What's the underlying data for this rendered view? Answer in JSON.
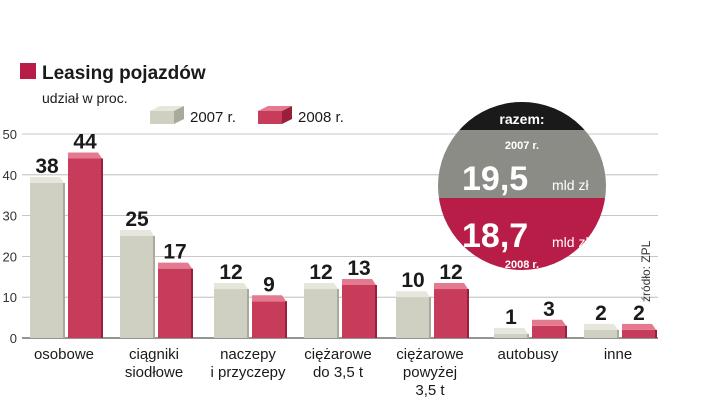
{
  "header": {
    "title": "Leasing pojazdów",
    "subtitle": "udział w proc.",
    "title_color": "#b81d47"
  },
  "legend": [
    {
      "name": "2007 r.",
      "color": "#cfcfc2"
    },
    {
      "name": "2008 r.",
      "color": "#c73c5a"
    }
  ],
  "summary": {
    "heading": "razem:",
    "items": [
      {
        "year": "2007 r.",
        "value": "19,5",
        "unit": "mld zł",
        "color": "#8c8c86"
      },
      {
        "year": "2008 r.",
        "value": "18,7",
        "unit": "mld zł",
        "color": "#b81d47"
      }
    ]
  },
  "source": "źródło: ZPL",
  "chart_data": {
    "type": "bar",
    "categories": [
      "osobowe",
      "ciągniki siodłowe",
      "naczepy i przyczepy",
      "ciężarowe do 3,5 t",
      "ciężarowe powyżej 3,5 t",
      "autobusy",
      "inne"
    ],
    "category_lines": [
      [
        "osobowe"
      ],
      [
        "ciągniki",
        "siodłowe"
      ],
      [
        "naczepy",
        "i przyczepy"
      ],
      [
        "ciężarowe",
        "do 3,5 t"
      ],
      [
        "ciężarowe",
        "powyżej",
        "3,5 t"
      ],
      [
        "autobusy"
      ],
      [
        "inne"
      ]
    ],
    "series": [
      {
        "name": "2007 r.",
        "values": [
          38,
          25,
          12,
          12,
          10,
          1,
          2
        ],
        "color": "#cfcfc2",
        "top": "#e6e6dc",
        "side": "#a9a99c"
      },
      {
        "name": "2008 r.",
        "values": [
          44,
          17,
          9,
          13,
          12,
          3,
          2
        ],
        "color": "#c73c5a",
        "top": "#e37a90",
        "side": "#9a1f3a"
      }
    ],
    "ylim": [
      0,
      50
    ],
    "yticks": [
      0,
      10,
      20,
      30,
      40,
      50
    ],
    "grid": true
  }
}
